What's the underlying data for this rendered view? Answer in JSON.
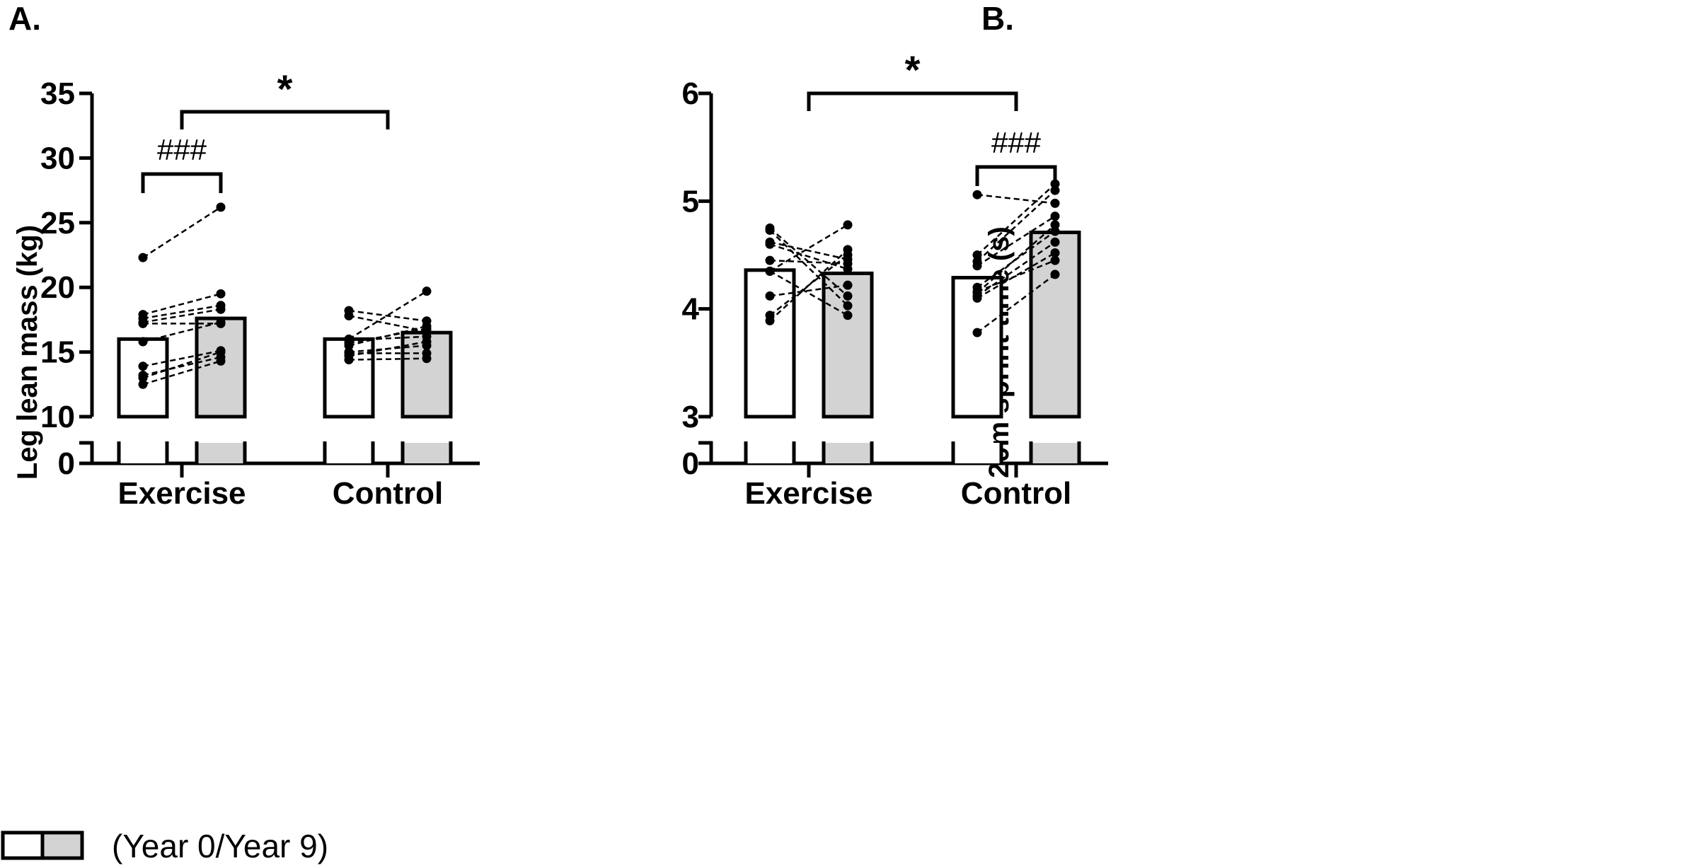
{
  "legend": {
    "label": "(Year 0/Year 9)",
    "colors": [
      "#ffffff",
      "#d3d3d3"
    ]
  },
  "chart_data": [
    {
      "type": "bar",
      "panel": "A.",
      "ylabel": "Leg lean mass (kg)",
      "categories": [
        "Exercise",
        "Control"
      ],
      "ylim": [
        10,
        35
      ],
      "yticks": [
        "35",
        "30",
        "25",
        "20",
        "15",
        "10"
      ],
      "axis_break_label": "0",
      "series": [
        {
          "colour": "#ffffff",
          "values": [
            16.0,
            16.0
          ]
        },
        {
          "colour": "#d3d3d3",
          "values": [
            17.6,
            16.5
          ]
        }
      ],
      "paired_points": [
        {
          "group": "Exercise",
          "pairs": [
            [
              22.3,
              26.2
            ],
            [
              17.9,
              19.5
            ],
            [
              17.6,
              18.6
            ],
            [
              17.3,
              18.3
            ],
            [
              15.8,
              17.3
            ],
            [
              13.9,
              15.1
            ],
            [
              13.0,
              15.0
            ],
            [
              12.5,
              14.3
            ],
            [
              13.2,
              14.6
            ],
            [
              17.2,
              17.2
            ]
          ]
        },
        {
          "group": "Control",
          "pairs": [
            [
              18.2,
              17.4
            ],
            [
              17.8,
              16.6
            ],
            [
              16.0,
              19.7
            ],
            [
              15.7,
              16.8
            ],
            [
              15.0,
              15.5
            ],
            [
              14.7,
              15.8
            ],
            [
              14.4,
              14.5
            ],
            [
              14.9,
              14.9
            ],
            [
              15.9,
              16.2
            ],
            [
              15.5,
              17.0
            ]
          ]
        }
      ],
      "annotations": [
        {
          "text": "*",
          "between": [
            "Exercise",
            "Control"
          ],
          "at": 31.5
        },
        {
          "text": "###",
          "group": "Exercise",
          "at": 29.5
        }
      ]
    },
    {
      "type": "bar",
      "panel": "B.",
      "ylabel": "20m sprint time (s)",
      "categories": [
        "Exercise",
        "Control"
      ],
      "ylim": [
        3,
        6
      ],
      "yticks": [
        "6",
        "5",
        "4",
        "3"
      ],
      "axis_break_label": "0",
      "series": [
        {
          "colour": "#ffffff",
          "values": [
            4.36,
            4.29
          ]
        },
        {
          "colour": "#d3d3d3",
          "values": [
            4.33,
            4.71
          ]
        }
      ],
      "paired_points": [
        {
          "group": "Exercise",
          "pairs": [
            [
              4.75,
              4.12
            ],
            [
              4.73,
              4.03
            ],
            [
              4.62,
              4.46
            ],
            [
              4.6,
              4.37
            ],
            [
              4.45,
              4.42
            ],
            [
              4.35,
              4.78
            ],
            [
              4.12,
              4.22
            ],
            [
              3.94,
              4.5
            ],
            [
              3.89,
              4.55
            ],
            [
              4.35,
              3.94
            ]
          ]
        },
        {
          "group": "Control",
          "pairs": [
            [
              5.06,
              4.98
            ],
            [
              4.5,
              5.16
            ],
            [
              4.44,
              5.1
            ],
            [
              4.2,
              4.72
            ],
            [
              4.15,
              4.78
            ],
            [
              4.12,
              4.62
            ],
            [
              3.78,
              4.32
            ],
            [
              4.1,
              4.52
            ],
            [
              4.16,
              4.45
            ],
            [
              4.4,
              4.86
            ]
          ]
        }
      ],
      "annotations": [
        {
          "text": "*",
          "between": [
            "Exercise",
            "Control"
          ],
          "at": 6.0
        },
        {
          "text": "###",
          "group": "Control",
          "at": 5.5
        }
      ]
    }
  ]
}
